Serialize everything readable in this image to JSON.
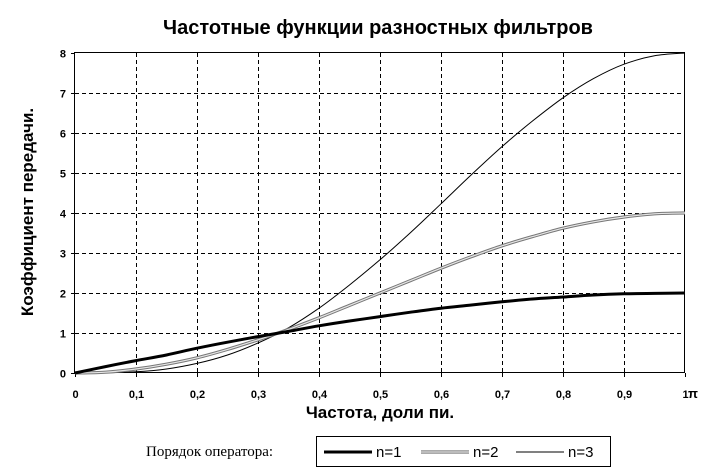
{
  "chart_data": {
    "type": "line",
    "title": "Частотные функции разностных фильтров",
    "xlabel": "Частота, доли пи.",
    "ylabel": "Коэффициент передачи.",
    "x_unit_label": "π",
    "xlim": [
      0,
      1
    ],
    "ylim": [
      0,
      8
    ],
    "x_ticks": [
      "0",
      "0,1",
      "0,2",
      "0,3",
      "0,4",
      "0,5",
      "0,6",
      "0,7",
      "0,8",
      "0,9",
      "1"
    ],
    "y_ticks": [
      "0",
      "1",
      "2",
      "3",
      "4",
      "5",
      "6",
      "7",
      "8"
    ],
    "grid": true,
    "legend_title": "Порядок оператора:",
    "legend_position": "bottom",
    "x": [
      0,
      0.05,
      0.1,
      0.15,
      0.2,
      0.25,
      0.3,
      0.35,
      0.4,
      0.45,
      0.5,
      0.55,
      0.6,
      0.65,
      0.7,
      0.75,
      0.8,
      0.85,
      0.9,
      0.95,
      1
    ],
    "series": [
      {
        "name": "n=1",
        "color": "#000000",
        "style": "thick",
        "values": [
          0,
          0.16,
          0.31,
          0.45,
          0.62,
          0.77,
          0.91,
          1.04,
          1.18,
          1.3,
          1.41,
          1.52,
          1.62,
          1.7,
          1.78,
          1.85,
          1.9,
          1.95,
          1.98,
          1.99,
          2.0
        ]
      },
      {
        "name": "n=2",
        "color": "#9a9a9a",
        "style": "double",
        "values": [
          0,
          0.02,
          0.1,
          0.22,
          0.38,
          0.59,
          0.83,
          1.09,
          1.38,
          1.69,
          2.0,
          2.31,
          2.62,
          2.91,
          3.18,
          3.41,
          3.62,
          3.78,
          3.9,
          3.98,
          4.0
        ]
      },
      {
        "name": "n=3",
        "color": "#000000",
        "style": "thin",
        "values": [
          0,
          0.004,
          0.03,
          0.1,
          0.24,
          0.45,
          0.75,
          1.13,
          1.62,
          2.2,
          2.83,
          3.51,
          4.23,
          4.96,
          5.66,
          6.3,
          6.88,
          7.36,
          7.72,
          7.93,
          8.0
        ]
      }
    ]
  }
}
